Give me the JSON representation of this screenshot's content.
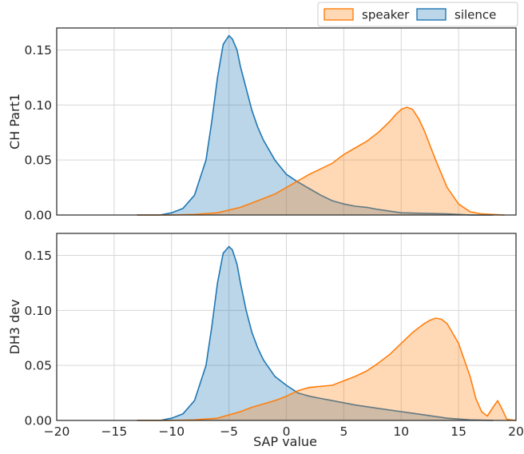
{
  "chart_data": {
    "type": "area",
    "xlabel": "SAP value",
    "xlim": [
      -20,
      20
    ],
    "xticks": [
      -20,
      -15,
      -10,
      -5,
      0,
      5,
      10,
      15,
      20
    ],
    "legend": {
      "placement": "top-right",
      "entries": [
        {
          "name": "speaker",
          "color": "#ff7f0e"
        },
        {
          "name": "silence",
          "color": "#1f77b4"
        }
      ]
    },
    "panels": [
      {
        "ylabel": "CH Part1",
        "ylim": [
          0,
          0.17
        ],
        "yticks": [
          0.0,
          0.05,
          0.1,
          0.15
        ],
        "series": [
          {
            "name": "silence",
            "color": "#1f77b4",
            "x": [
              -13,
              -11,
              -10,
              -9,
              -8,
              -7,
              -6.5,
              -6,
              -5.5,
              -5,
              -4.7,
              -4.3,
              -4,
              -3.5,
              -3,
              -2.5,
              -2,
              -1,
              0,
              1,
              2,
              3,
              4,
              5,
              6,
              7,
              8,
              10,
              12,
              14,
              16,
              18
            ],
            "y": [
              0,
              0,
              0.002,
              0.006,
              0.018,
              0.05,
              0.085,
              0.125,
              0.155,
              0.163,
              0.16,
              0.15,
              0.135,
              0.115,
              0.095,
              0.08,
              0.068,
              0.05,
              0.037,
              0.03,
              0.024,
              0.018,
              0.013,
              0.01,
              0.008,
              0.007,
              0.005,
              0.002,
              0.0015,
              0.001,
              0,
              0
            ]
          },
          {
            "name": "speaker",
            "color": "#ff7f0e",
            "x": [
              -13,
              -10,
              -8,
              -6,
              -4,
              -2,
              -1,
              0,
              1,
              2,
              3,
              4,
              5,
              6,
              7,
              8,
              9,
              9.5,
              10,
              10.5,
              11,
              11.5,
              12,
              13,
              14,
              15,
              16,
              17,
              18,
              19
            ],
            "y": [
              0,
              0,
              0.0005,
              0.002,
              0.007,
              0.015,
              0.019,
              0.025,
              0.031,
              0.037,
              0.042,
              0.047,
              0.055,
              0.061,
              0.067,
              0.075,
              0.085,
              0.091,
              0.096,
              0.098,
              0.096,
              0.088,
              0.077,
              0.05,
              0.025,
              0.01,
              0.003,
              0.001,
              0.0005,
              0
            ]
          }
        ]
      },
      {
        "ylabel": "DH3 dev",
        "ylim": [
          0,
          0.17
        ],
        "yticks": [
          0.0,
          0.05,
          0.1,
          0.15
        ],
        "series": [
          {
            "name": "silence",
            "color": "#1f77b4",
            "x": [
              -13,
              -11,
              -10,
              -9,
              -8,
              -7,
              -6.5,
              -6,
              -5.5,
              -5,
              -4.7,
              -4.3,
              -4,
              -3.5,
              -3,
              -2.5,
              -2,
              -1,
              0,
              1,
              2,
              3,
              4,
              6,
              8,
              10,
              12,
              14,
              16,
              18
            ],
            "y": [
              0,
              0,
              0.002,
              0.006,
              0.018,
              0.05,
              0.085,
              0.125,
              0.152,
              0.158,
              0.155,
              0.142,
              0.125,
              0.1,
              0.08,
              0.066,
              0.055,
              0.04,
              0.032,
              0.025,
              0.022,
              0.02,
              0.018,
              0.014,
              0.011,
              0.008,
              0.005,
              0.002,
              0.0005,
              0
            ]
          },
          {
            "name": "speaker",
            "color": "#ff7f0e",
            "x": [
              -13,
              -10,
              -8,
              -6,
              -4,
              -3,
              -2,
              -1,
              0,
              1,
              2,
              3,
              4,
              5,
              6,
              7,
              8,
              9,
              10,
              11,
              12,
              12.5,
              13,
              13.5,
              14,
              15,
              16,
              16.5,
              17,
              17.5,
              18,
              18.4,
              18.8,
              19.2,
              20
            ],
            "y": [
              0,
              0,
              0.0005,
              0.002,
              0.008,
              0.012,
              0.015,
              0.018,
              0.022,
              0.027,
              0.03,
              0.031,
              0.032,
              0.036,
              0.04,
              0.045,
              0.052,
              0.06,
              0.07,
              0.08,
              0.088,
              0.091,
              0.093,
              0.092,
              0.088,
              0.07,
              0.04,
              0.02,
              0.008,
              0.004,
              0.012,
              0.018,
              0.01,
              0.001,
              0
            ]
          }
        ]
      }
    ]
  }
}
